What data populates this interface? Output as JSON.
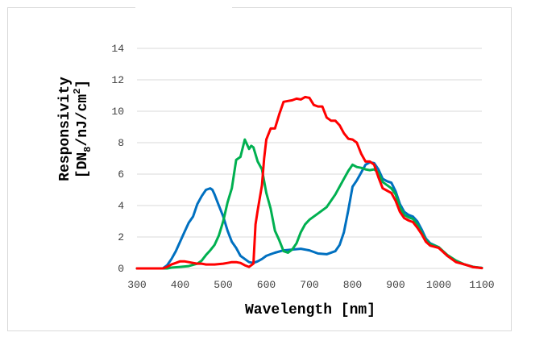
{
  "chart_data": {
    "type": "line",
    "title": "",
    "xlabel": "Wavelength [nm]",
    "ylabel_line1": "Responsivity",
    "ylabel_line2_prefix": "[DN",
    "ylabel_line2_sub": "8",
    "ylabel_line2_mid": "/nJ/cm",
    "ylabel_line2_sup": "2",
    "ylabel_line2_suffix": "]",
    "xlim": [
      300,
      1100
    ],
    "ylim": [
      0,
      14
    ],
    "xticks": [
      300,
      400,
      500,
      600,
      700,
      800,
      900,
      1000,
      1100
    ],
    "yticks": [
      0,
      2,
      4,
      6,
      8,
      10,
      12,
      14
    ],
    "grid": "horizontal",
    "legend": "none",
    "series": [
      {
        "color": "#0070c0",
        "points": [
          [
            300,
            0
          ],
          [
            360,
            0
          ],
          [
            370,
            0.2
          ],
          [
            380,
            0.6
          ],
          [
            390,
            1.1
          ],
          [
            400,
            1.7
          ],
          [
            410,
            2.3
          ],
          [
            420,
            2.9
          ],
          [
            430,
            3.3
          ],
          [
            440,
            4.1
          ],
          [
            450,
            4.6
          ],
          [
            460,
            5.0
          ],
          [
            470,
            5.1
          ],
          [
            475,
            5.0
          ],
          [
            480,
            4.7
          ],
          [
            490,
            4.0
          ],
          [
            500,
            3.3
          ],
          [
            510,
            2.4
          ],
          [
            520,
            1.7
          ],
          [
            530,
            1.3
          ],
          [
            540,
            0.8
          ],
          [
            550,
            0.6
          ],
          [
            560,
            0.4
          ],
          [
            570,
            0.35
          ],
          [
            580,
            0.45
          ],
          [
            590,
            0.6
          ],
          [
            600,
            0.8
          ],
          [
            610,
            0.9
          ],
          [
            620,
            1.0
          ],
          [
            640,
            1.15
          ],
          [
            660,
            1.2
          ],
          [
            680,
            1.25
          ],
          [
            700,
            1.15
          ],
          [
            720,
            0.95
          ],
          [
            740,
            0.9
          ],
          [
            760,
            1.1
          ],
          [
            770,
            1.5
          ],
          [
            780,
            2.3
          ],
          [
            790,
            3.7
          ],
          [
            800,
            5.2
          ],
          [
            810,
            5.6
          ],
          [
            820,
            6.1
          ],
          [
            830,
            6.6
          ],
          [
            840,
            6.75
          ],
          [
            850,
            6.7
          ],
          [
            860,
            6.3
          ],
          [
            870,
            5.7
          ],
          [
            880,
            5.55
          ],
          [
            890,
            5.45
          ],
          [
            900,
            4.9
          ],
          [
            910,
            4.1
          ],
          [
            920,
            3.6
          ],
          [
            930,
            3.4
          ],
          [
            940,
            3.3
          ],
          [
            950,
            3.0
          ],
          [
            960,
            2.5
          ],
          [
            970,
            1.9
          ],
          [
            980,
            1.6
          ],
          [
            1000,
            1.35
          ],
          [
            1020,
            0.8
          ],
          [
            1040,
            0.45
          ],
          [
            1060,
            0.25
          ],
          [
            1080,
            0.1
          ],
          [
            1100,
            0.03
          ]
        ]
      },
      {
        "color": "#00b050",
        "points": [
          [
            300,
            0
          ],
          [
            370,
            0.0
          ],
          [
            380,
            0.05
          ],
          [
            400,
            0.1
          ],
          [
            420,
            0.15
          ],
          [
            440,
            0.3
          ],
          [
            450,
            0.5
          ],
          [
            460,
            0.85
          ],
          [
            470,
            1.15
          ],
          [
            480,
            1.5
          ],
          [
            490,
            2.1
          ],
          [
            500,
            3.0
          ],
          [
            510,
            4.2
          ],
          [
            520,
            5.1
          ],
          [
            530,
            6.9
          ],
          [
            540,
            7.1
          ],
          [
            550,
            8.2
          ],
          [
            560,
            7.6
          ],
          [
            565,
            7.8
          ],
          [
            570,
            7.7
          ],
          [
            580,
            6.8
          ],
          [
            590,
            6.3
          ],
          [
            600,
            4.8
          ],
          [
            610,
            3.8
          ],
          [
            620,
            2.4
          ],
          [
            630,
            1.8
          ],
          [
            640,
            1.1
          ],
          [
            650,
            1.0
          ],
          [
            660,
            1.2
          ],
          [
            670,
            1.6
          ],
          [
            680,
            2.3
          ],
          [
            690,
            2.8
          ],
          [
            700,
            3.1
          ],
          [
            720,
            3.5
          ],
          [
            740,
            3.9
          ],
          [
            760,
            4.7
          ],
          [
            780,
            5.7
          ],
          [
            790,
            6.2
          ],
          [
            800,
            6.6
          ],
          [
            810,
            6.45
          ],
          [
            820,
            6.4
          ],
          [
            830,
            6.3
          ],
          [
            840,
            6.25
          ],
          [
            850,
            6.3
          ],
          [
            860,
            6.1
          ],
          [
            870,
            5.5
          ],
          [
            880,
            5.3
          ],
          [
            890,
            5.1
          ],
          [
            900,
            4.7
          ],
          [
            910,
            3.9
          ],
          [
            920,
            3.4
          ],
          [
            930,
            3.25
          ],
          [
            940,
            3.15
          ],
          [
            950,
            2.8
          ],
          [
            960,
            2.3
          ],
          [
            970,
            1.8
          ],
          [
            980,
            1.55
          ],
          [
            1000,
            1.35
          ],
          [
            1020,
            0.85
          ],
          [
            1040,
            0.5
          ],
          [
            1060,
            0.25
          ],
          [
            1080,
            0.1
          ],
          [
            1100,
            0.03
          ]
        ]
      },
      {
        "color": "#ff0000",
        "points": [
          [
            300,
            0
          ],
          [
            360,
            0
          ],
          [
            370,
            0.1
          ],
          [
            380,
            0.25
          ],
          [
            390,
            0.35
          ],
          [
            400,
            0.45
          ],
          [
            410,
            0.45
          ],
          [
            420,
            0.4
          ],
          [
            430,
            0.35
          ],
          [
            440,
            0.3
          ],
          [
            450,
            0.3
          ],
          [
            460,
            0.25
          ],
          [
            480,
            0.25
          ],
          [
            500,
            0.3
          ],
          [
            510,
            0.35
          ],
          [
            520,
            0.4
          ],
          [
            530,
            0.4
          ],
          [
            540,
            0.35
          ],
          [
            550,
            0.2
          ],
          [
            560,
            0.1
          ],
          [
            570,
            0.3
          ],
          [
            575,
            2.8
          ],
          [
            580,
            3.7
          ],
          [
            590,
            5.3
          ],
          [
            595,
            7.0
          ],
          [
            600,
            8.2
          ],
          [
            610,
            8.9
          ],
          [
            620,
            8.9
          ],
          [
            630,
            9.8
          ],
          [
            640,
            10.6
          ],
          [
            650,
            10.65
          ],
          [
            660,
            10.7
          ],
          [
            670,
            10.8
          ],
          [
            680,
            10.75
          ],
          [
            690,
            10.9
          ],
          [
            700,
            10.85
          ],
          [
            710,
            10.4
          ],
          [
            720,
            10.3
          ],
          [
            730,
            10.3
          ],
          [
            740,
            9.6
          ],
          [
            750,
            9.4
          ],
          [
            760,
            9.4
          ],
          [
            770,
            9.1
          ],
          [
            780,
            8.6
          ],
          [
            790,
            8.25
          ],
          [
            800,
            8.2
          ],
          [
            810,
            8.0
          ],
          [
            820,
            7.3
          ],
          [
            830,
            6.8
          ],
          [
            840,
            6.8
          ],
          [
            850,
            6.6
          ],
          [
            860,
            5.8
          ],
          [
            870,
            5.1
          ],
          [
            880,
            4.95
          ],
          [
            890,
            4.8
          ],
          [
            900,
            4.3
          ],
          [
            910,
            3.6
          ],
          [
            920,
            3.2
          ],
          [
            930,
            3.05
          ],
          [
            940,
            2.95
          ],
          [
            950,
            2.6
          ],
          [
            960,
            2.2
          ],
          [
            970,
            1.7
          ],
          [
            980,
            1.45
          ],
          [
            1000,
            1.3
          ],
          [
            1020,
            0.8
          ],
          [
            1040,
            0.4
          ],
          [
            1060,
            0.25
          ],
          [
            1080,
            0.08
          ],
          [
            1100,
            0.02
          ]
        ]
      }
    ]
  }
}
